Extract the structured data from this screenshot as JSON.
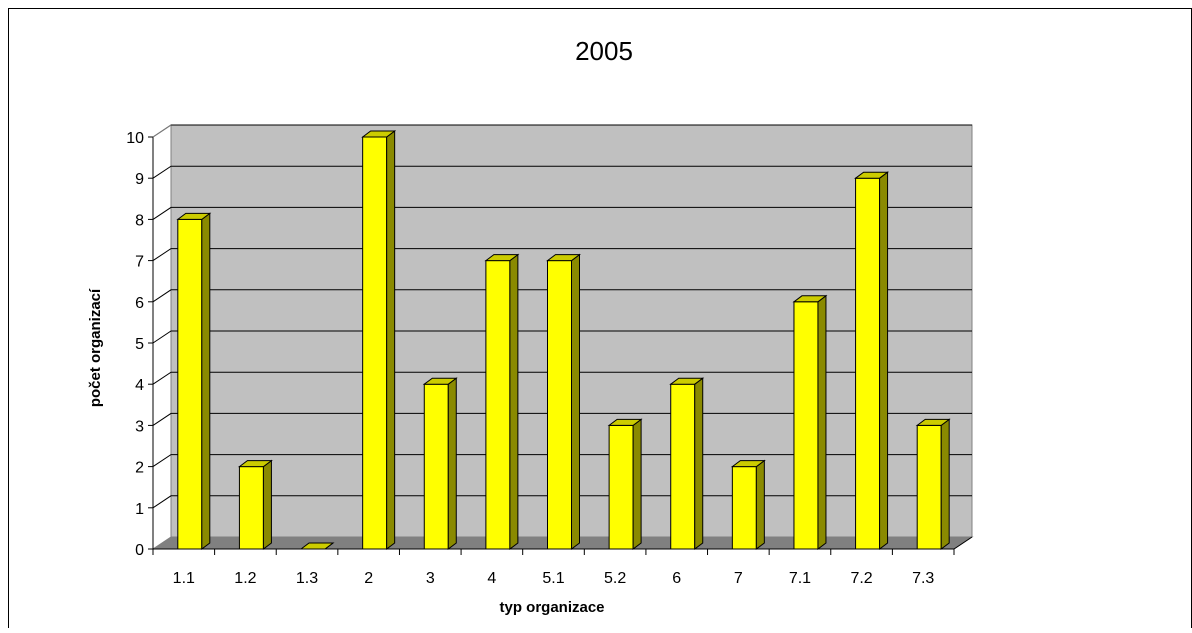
{
  "chart_data": {
    "type": "bar",
    "title": "2005",
    "xlabel": "typ organizace",
    "ylabel": "počet organizací",
    "categories": [
      "1.1",
      "1.2",
      "1.3",
      "2",
      "3",
      "4",
      "5.1",
      "5.2",
      "6",
      "7",
      "7.1",
      "7.2",
      "7.3"
    ],
    "values": [
      8,
      2,
      0,
      10,
      4,
      7,
      7,
      3,
      4,
      2,
      6,
      9,
      3
    ],
    "ylim": [
      0,
      10
    ],
    "yticks": [
      "0",
      "1",
      "2",
      "3",
      "4",
      "5",
      "6",
      "7",
      "8",
      "9",
      "10"
    ],
    "grid": true,
    "legend": "none",
    "colors": {
      "bar_front": "#ffff00",
      "bar_side": "#8a8a00",
      "bar_top": "#cccc00",
      "wall": "#c0c0c0",
      "floor": "#808080",
      "outline": "#000000"
    }
  }
}
